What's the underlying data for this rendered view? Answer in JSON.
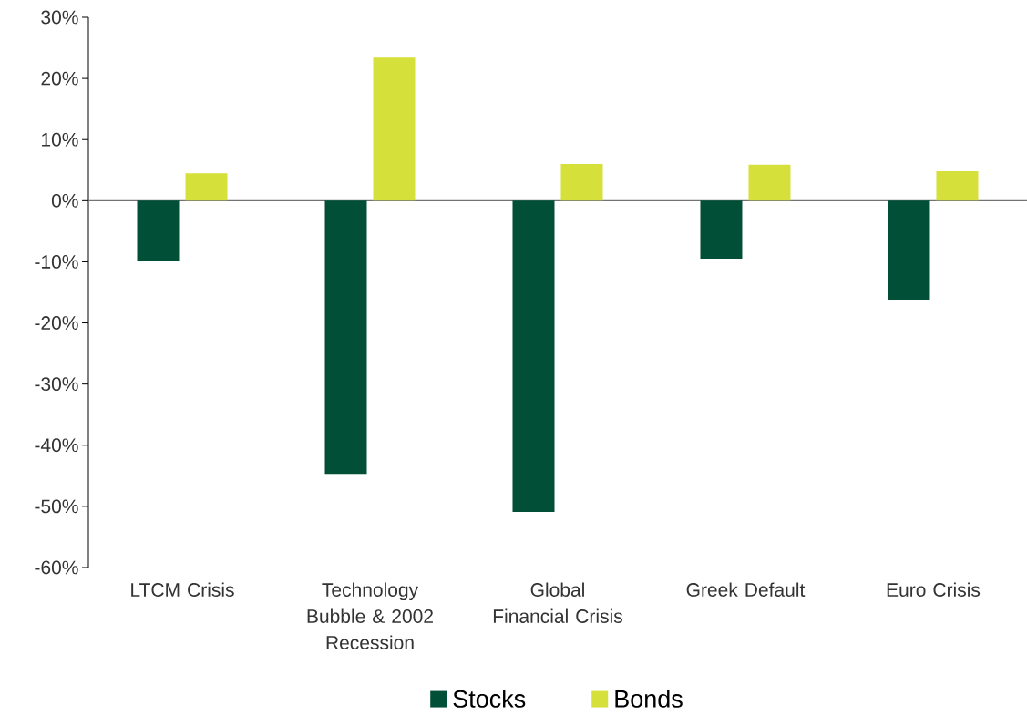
{
  "chart_data": {
    "type": "bar",
    "categories": [
      "LTCM Crisis",
      "Technology Bubble & 2002 Recession",
      "Global Financial Crisis",
      "Greek Default",
      "Euro Crisis"
    ],
    "series": [
      {
        "name": "Stocks",
        "color": "#024f38",
        "values": [
          -9.9,
          -44.7,
          -50.9,
          -9.5,
          -16.2
        ]
      },
      {
        "name": "Bonds",
        "color": "#d6e03a",
        "values": [
          4.5,
          23.4,
          6.0,
          5.9,
          4.8
        ]
      }
    ],
    "ylim": [
      -60,
      30
    ],
    "yticks": [
      {
        "value": -60,
        "label": "-60%"
      },
      {
        "value": -50,
        "label": "-50%"
      },
      {
        "value": -40,
        "label": "-40%"
      },
      {
        "value": -30,
        "label": "-30%"
      },
      {
        "value": -20,
        "label": "-20%"
      },
      {
        "value": -10,
        "label": "-10%"
      },
      {
        "value": 0,
        "label": "0%"
      },
      {
        "value": 10,
        "label": "10%"
      },
      {
        "value": 20,
        "label": "20%"
      },
      {
        "value": 30,
        "label": "30%"
      }
    ],
    "legend": "bottom"
  }
}
